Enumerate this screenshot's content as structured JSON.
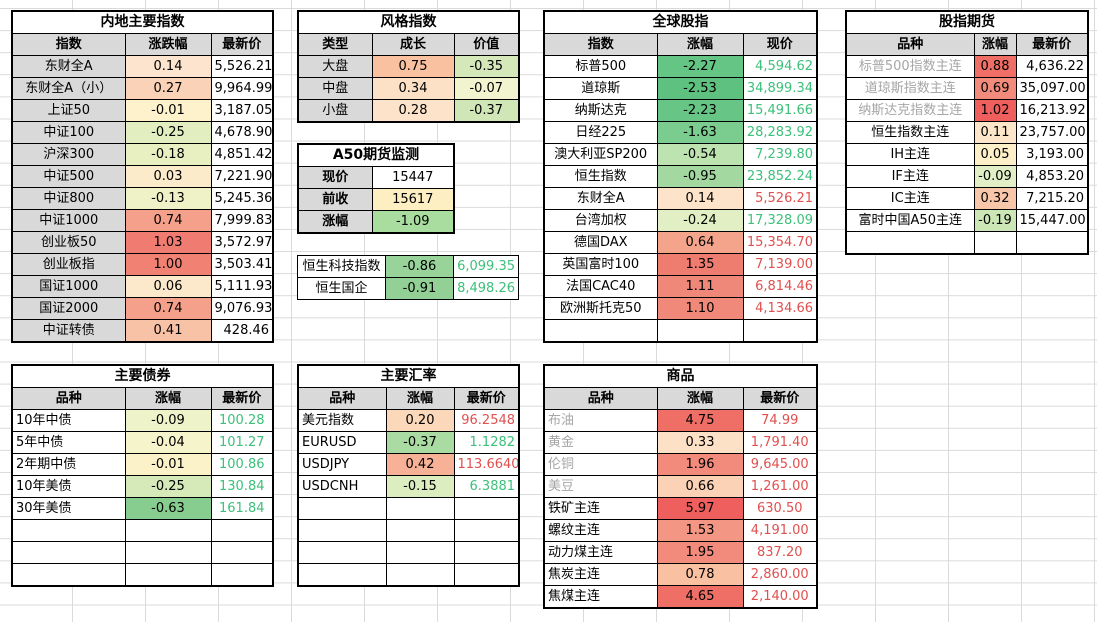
{
  "domestic": {
    "title": "内地主要指数",
    "headers": [
      "指数",
      "涨跌幅",
      "最新价"
    ],
    "rows": [
      {
        "name": "东财全A",
        "chg": "0.14",
        "price": "5,526.21",
        "bg": "#fce4ce"
      },
      {
        "name": "东财全A（小）",
        "chg": "0.27",
        "price": "9,964.99",
        "bg": "#f9d2b8"
      },
      {
        "name": "上证50",
        "chg": "-0.01",
        "price": "3,187.05",
        "bg": "#fdf2cc"
      },
      {
        "name": "中证100",
        "chg": "-0.25",
        "price": "4,678.90",
        "bg": "#e3eec0"
      },
      {
        "name": "沪深300",
        "chg": "-0.18",
        "price": "4,851.42",
        "bg": "#e8f0c2"
      },
      {
        "name": "中证500",
        "chg": "0.03",
        "price": "7,221.90",
        "bg": "#fcebcb"
      },
      {
        "name": "中证800",
        "chg": "-0.13",
        "price": "5,245.36",
        "bg": "#eef2c6"
      },
      {
        "name": "中证1000",
        "chg": "0.74",
        "price": "7,999.83",
        "bg": "#f5a08b"
      },
      {
        "name": "创业板50",
        "chg": "1.03",
        "price": "3,572.97",
        "bg": "#f07c71"
      },
      {
        "name": "创业板指",
        "chg": "1.00",
        "price": "3,503.41",
        "bg": "#f18273"
      },
      {
        "name": "国证1000",
        "chg": "0.06",
        "price": "5,111.93",
        "bg": "#fce9cb"
      },
      {
        "name": "国证2000",
        "chg": "0.74",
        "price": "9,076.93",
        "bg": "#f5a08b"
      },
      {
        "name": "中证转债",
        "chg": "0.41",
        "price": "428.46",
        "bg": "#f8c2a6"
      }
    ]
  },
  "style": {
    "title": "风格指数",
    "headers": [
      "类型",
      "成长",
      "价值"
    ],
    "rows": [
      {
        "name": "大盘",
        "growth": "0.75",
        "growth_bg": "#f9c1a0",
        "value": "-0.35",
        "value_bg": "#d4e8b9"
      },
      {
        "name": "中盘",
        "growth": "0.34",
        "growth_bg": "#fde1c6",
        "value": "-0.07",
        "value_bg": "#f2f4cf"
      },
      {
        "name": "小盘",
        "growth": "0.28",
        "growth_bg": "#fde3c9",
        "value": "-0.37",
        "value_bg": "#d0e6b6"
      }
    ]
  },
  "a50": {
    "title": "A50期货监测",
    "rows": [
      {
        "label": "现价",
        "value": "15447",
        "bg": "#ffffff"
      },
      {
        "label": "前收",
        "value": "15617",
        "bg": "#fdefc2"
      },
      {
        "label": "涨幅",
        "value": "-1.09",
        "bg": "#a9dda0"
      }
    ]
  },
  "hk": {
    "rows": [
      {
        "name": "恒生科技指数",
        "chg": "-0.86",
        "price": "6,099.35",
        "bg": "#98d39a"
      },
      {
        "name": "恒生国企",
        "chg": "-0.91",
        "price": "8,498.26",
        "bg": "#93d096"
      }
    ]
  },
  "global": {
    "title": "全球股指",
    "headers": [
      "指数",
      "涨幅",
      "现价"
    ],
    "rows": [
      {
        "name": "标普500",
        "chg": "-2.27",
        "price": "4,594.62",
        "dir": "dn",
        "bg": "#65c585"
      },
      {
        "name": "道琼斯",
        "chg": "-2.53",
        "price": "34,899.34",
        "dir": "dn",
        "bg": "#5ec17f"
      },
      {
        "name": "纳斯达克",
        "chg": "-2.23",
        "price": "15,491.66",
        "dir": "dn",
        "bg": "#67c686"
      },
      {
        "name": "日经225",
        "chg": "-1.63",
        "price": "28,283.92",
        "dir": "dn",
        "bg": "#7acd8f"
      },
      {
        "name": "澳大利亚SP200",
        "chg": "-0.54",
        "price": "7,239.80",
        "dir": "dn",
        "bg": "#bde3b0"
      },
      {
        "name": "恒生指数",
        "chg": "-0.95",
        "price": "23,852.24",
        "dir": "dn",
        "bg": "#a3d9a1"
      },
      {
        "name": "东财全A",
        "chg": "0.14",
        "price": "5,526.21",
        "dir": "up",
        "bg": "#fde3c9"
      },
      {
        "name": "台湾加权",
        "chg": "-0.24",
        "price": "17,328.09",
        "dir": "dn",
        "bg": "#e2efc4"
      },
      {
        "name": "德国DAX",
        "chg": "0.64",
        "price": "15,354.70",
        "dir": "up",
        "bg": "#f4a48b"
      },
      {
        "name": "英国富时100",
        "chg": "1.35",
        "price": "7,139.00",
        "dir": "up",
        "bg": "#ef7d6f"
      },
      {
        "name": "法国CAC40",
        "chg": "1.11",
        "price": "6,814.46",
        "dir": "up",
        "bg": "#f0887a"
      },
      {
        "name": "欧洲斯托克50",
        "chg": "1.10",
        "price": "4,134.66",
        "dir": "up",
        "bg": "#f0897a"
      }
    ]
  },
  "futures": {
    "title": "股指期货",
    "headers": [
      "品种",
      "涨幅",
      "最新价"
    ],
    "rows": [
      {
        "name": "标普500指数主连",
        "chg": "0.88",
        "price": "4,636.22",
        "bg": "#ef6e66",
        "gray": true
      },
      {
        "name": "道琼斯指数主连",
        "chg": "0.69",
        "price": "35,097.00",
        "bg": "#f28b7b",
        "gray": true
      },
      {
        "name": "纳斯达克指数主连",
        "chg": "1.02",
        "price": "16,213.92",
        "bg": "#ee5f5d",
        "gray": true
      },
      {
        "name": "恒生指数主连",
        "chg": "0.11",
        "price": "23,757.00",
        "bg": "#fde6c9",
        "gray": false
      },
      {
        "name": "IH主连",
        "chg": "0.05",
        "price": "3,193.00",
        "bg": "#fdefc8",
        "gray": false
      },
      {
        "name": "IF主连",
        "chg": "-0.09",
        "price": "4,853.20",
        "bg": "#e2efc6",
        "gray": false
      },
      {
        "name": "IC主连",
        "chg": "0.32",
        "price": "7,215.20",
        "bg": "#f8c6a8",
        "gray": false
      },
      {
        "name": "富时中国A50主连",
        "chg": "-0.19",
        "price": "15,447.00",
        "bg": "#cce6b6",
        "gray": false
      }
    ]
  },
  "bonds": {
    "title": "主要债券",
    "headers": [
      "品种",
      "涨幅",
      "最新价"
    ],
    "rows": [
      {
        "name": "10年中债",
        "chg": "-0.09",
        "price": "100.28",
        "bg": "#eef3c9"
      },
      {
        "name": "5年中债",
        "chg": "-0.04",
        "price": "101.27",
        "bg": "#f6f4cb"
      },
      {
        "name": "2年期中债",
        "chg": "-0.01",
        "price": "100.86",
        "bg": "#fbf2ca"
      },
      {
        "name": "10年美债",
        "chg": "-0.25",
        "price": "130.84",
        "bg": "#d5e9b9"
      },
      {
        "name": "30年美债",
        "chg": "-0.63",
        "price": "161.84",
        "bg": "#88cd90"
      }
    ]
  },
  "fx": {
    "title": "主要汇率",
    "headers": [
      "品种",
      "涨幅",
      "最新价"
    ],
    "rows": [
      {
        "name": "美元指数",
        "chg": "0.20",
        "price": "96.2548",
        "dir": "up",
        "bg": "#fbd8b9"
      },
      {
        "name": "EURUSD",
        "chg": "-0.37",
        "price": "1.1282",
        "dir": "dn",
        "bg": "#a9dba2"
      },
      {
        "name": "USDJPY",
        "chg": "0.42",
        "price": "113.6640",
        "dir": "up",
        "bg": "#f6b196"
      },
      {
        "name": "USDCNH",
        "chg": "-0.15",
        "price": "6.3881",
        "dir": "dn",
        "bg": "#dcedc0"
      }
    ]
  },
  "commodities": {
    "title": "商品",
    "headers": [
      "品种",
      "涨幅",
      "最新价"
    ],
    "rows": [
      {
        "name": "布油",
        "chg": "4.75",
        "price": "74.99",
        "bg": "#ef6e66",
        "gray": true
      },
      {
        "name": "黄金",
        "chg": "0.33",
        "price": "1,791.40",
        "bg": "#fde1c6",
        "gray": true
      },
      {
        "name": "伦铜",
        "chg": "1.96",
        "price": "9,645.00",
        "bg": "#f28b7b",
        "gray": true
      },
      {
        "name": "美豆",
        "chg": "0.66",
        "price": "1,261.00",
        "bg": "#fbd2b6",
        "gray": true
      },
      {
        "name": "铁矿主连",
        "chg": "5.97",
        "price": "630.50",
        "bg": "#ee5f5d",
        "gray": false
      },
      {
        "name": "螺纹主连",
        "chg": "1.53",
        "price": "4,191.00",
        "bg": "#f39683",
        "gray": false
      },
      {
        "name": "动力煤主连",
        "chg": "1.95",
        "price": "837.20",
        "bg": "#f28b7b",
        "gray": false
      },
      {
        "name": "焦炭主连",
        "chg": "0.78",
        "price": "2,860.00",
        "bg": "#f9c0a2",
        "gray": false
      },
      {
        "name": "焦煤主连",
        "chg": "4.65",
        "price": "2,140.00",
        "bg": "#ef6f67",
        "gray": false
      }
    ]
  }
}
